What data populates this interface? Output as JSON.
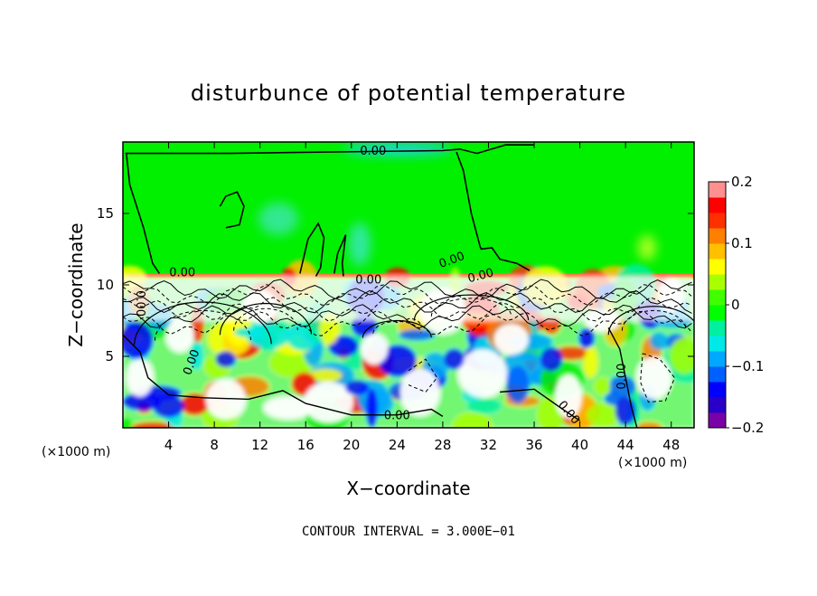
{
  "chart_data": {
    "type": "heatmap",
    "title": "disturbunce of potential temperature",
    "xlabel": "X−coordinate",
    "ylabel": "Z−coordinate",
    "x_unit": "(×1000 m)",
    "y_unit": "(×1000 m)",
    "xlim": [
      0,
      50
    ],
    "ylim": [
      0,
      20
    ],
    "x_ticks": [
      4,
      8,
      12,
      16,
      20,
      24,
      28,
      32,
      36,
      40,
      44,
      48
    ],
    "y_ticks": [
      5,
      10,
      15
    ],
    "x_tick_labels": [
      "4",
      "8",
      "12",
      "16",
      "20",
      "24",
      "28",
      "32",
      "36",
      "40",
      "44",
      "48"
    ],
    "y_tick_labels": [
      "5",
      "10",
      "15"
    ],
    "colorbar": {
      "min": -0.2,
      "max": 0.2,
      "ticks": [
        0.2,
        0.1,
        0,
        -0.1,
        -0.2
      ],
      "tick_labels": [
        "0.2",
        "0.1",
        "0",
        "−0.1",
        "−0.2"
      ],
      "colors": [
        "#7a00a8",
        "#2a00c8",
        "#0000ff",
        "#0060ff",
        "#00a8ff",
        "#00e8e8",
        "#00f0a0",
        "#00ff00",
        "#40ff00",
        "#a8ff00",
        "#ffff00",
        "#ffc000",
        "#ff8000",
        "#ff3000",
        "#ff0000",
        "#ff9090"
      ]
    },
    "contour_labels": [
      "0.00",
      "0.00",
      "0.00",
      "0.00",
      "0.00",
      "0.00",
      "0.00",
      "0.00",
      "0.00",
      "0.00"
    ],
    "contour_interval_text": "CONTOUR INTERVAL = 3.000E−01",
    "regions": {
      "upper_uniform": {
        "z_range": [
          10.6,
          20
        ],
        "value": 0.0
      },
      "turbulent_layer": {
        "z_range": [
          0,
          10.6
        ],
        "value_range": [
          -0.2,
          0.2
        ]
      }
    },
    "grid": false
  }
}
